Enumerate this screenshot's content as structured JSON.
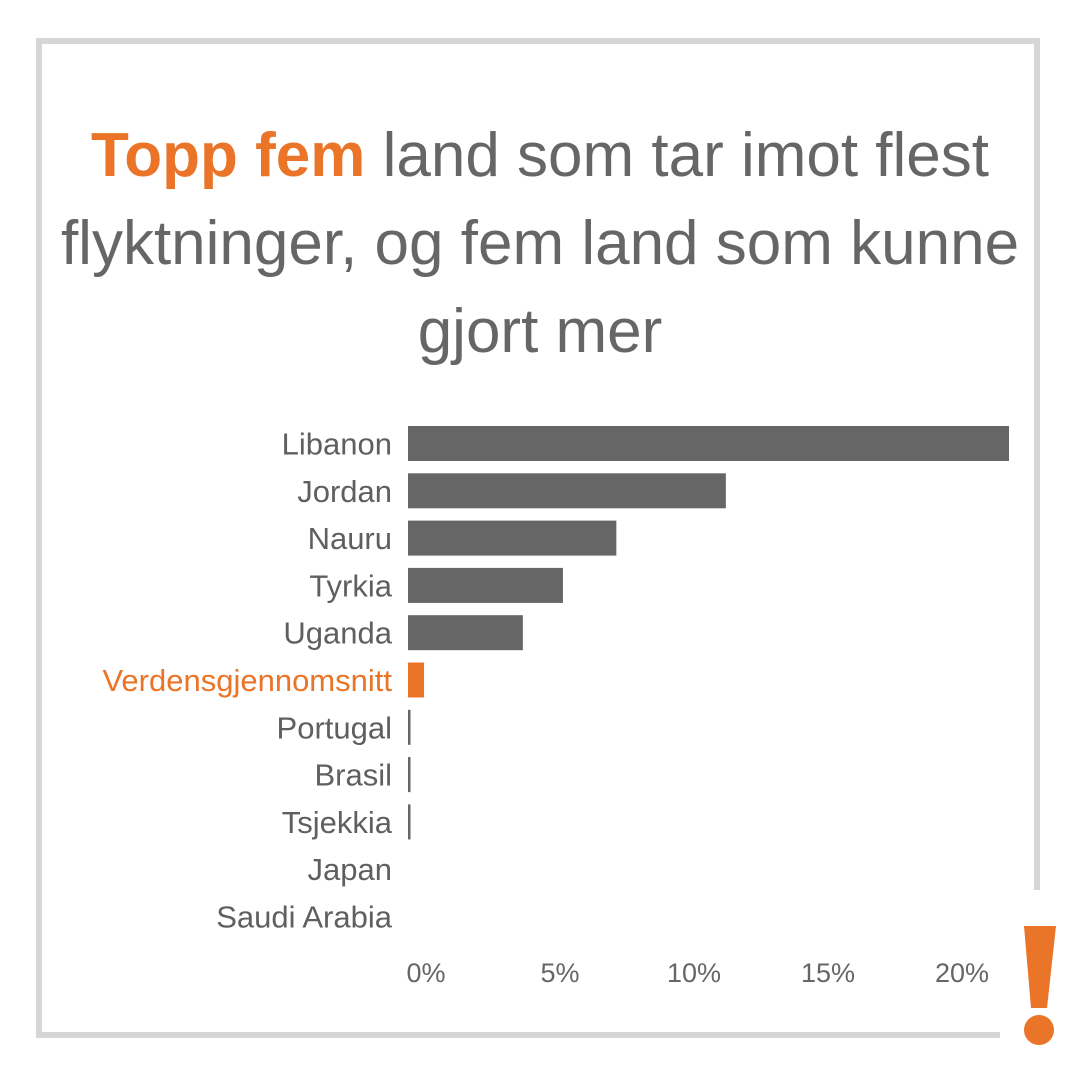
{
  "title": {
    "highlight": "Topp fem",
    "rest": "land som tar imot flest flyktninger, og fem land som kunne gjort mer"
  },
  "colors": {
    "bar": "#666666",
    "highlight": "#ea7427",
    "frame": "#d6d6d6"
  },
  "icon": "exclamation-mark",
  "chart_data": {
    "type": "bar",
    "orientation": "horizontal",
    "categories": [
      "Libanon",
      "Jordan",
      "Nauru",
      "Tyrkia",
      "Uganda",
      "Verdensgjennomsnitt",
      "Portugal",
      "Brasil",
      "Tsjekkia",
      "Japan",
      "Saudi Arabia"
    ],
    "values": [
      22.5,
      11.9,
      7.8,
      5.8,
      4.3,
      0.6,
      0.05,
      0.05,
      0.05,
      0.0,
      0.0
    ],
    "highlight_category": "Verdensgjennomsnitt",
    "xlim": [
      0,
      22.5
    ],
    "xticks": [
      0,
      5,
      10,
      15,
      20
    ],
    "xtick_labels": [
      "0%",
      "5%",
      "10%",
      "15%",
      "20%"
    ],
    "grid": false,
    "legend": "none"
  }
}
